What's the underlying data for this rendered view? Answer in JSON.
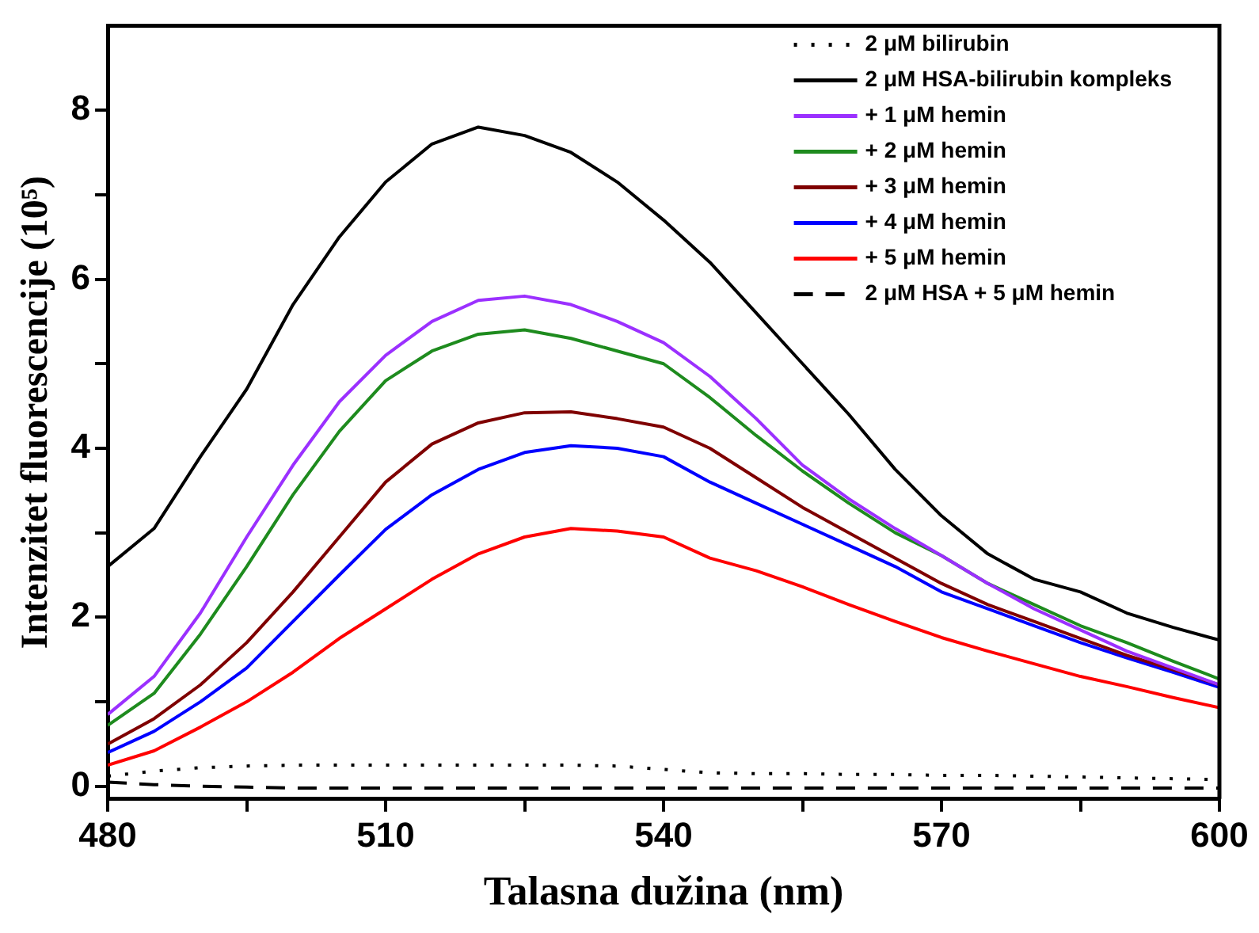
{
  "chart_data": {
    "type": "line",
    "xlabel": "Talasna dužina (nm)",
    "ylabel": "Intenzitet fluorescencije (10⁵)",
    "xlim": [
      480,
      600
    ],
    "xticks": [
      480,
      {
        "value": 495,
        "label": null
      },
      510,
      {
        "value": 525,
        "label": null
      },
      540,
      {
        "value": 555,
        "label": null
      },
      570,
      {
        "value": 585,
        "label": null
      },
      600
    ],
    "ylim": [
      -0.15,
      9
    ],
    "yticks": [
      0,
      {
        "value": 1,
        "label": null
      },
      2,
      {
        "value": 3,
        "label": null
      },
      4,
      {
        "value": 5,
        "label": null
      },
      6,
      {
        "value": 7,
        "label": null
      },
      8
    ],
    "x": [
      480,
      485,
      490,
      495,
      500,
      505,
      510,
      515,
      520,
      525,
      530,
      535,
      540,
      545,
      550,
      555,
      560,
      565,
      570,
      575,
      580,
      585,
      590,
      595,
      600
    ],
    "legend": "top right",
    "grid": false,
    "marker": "none",
    "series": [
      {
        "name": "2 μM bilirubin",
        "color": "#000000",
        "line_style": "dotted",
        "values": [
          0.12,
          0.18,
          0.22,
          0.24,
          0.25,
          0.25,
          0.25,
          0.25,
          0.25,
          0.25,
          0.25,
          0.24,
          0.2,
          0.16,
          0.15,
          0.15,
          0.14,
          0.14,
          0.13,
          0.13,
          0.12,
          0.11,
          0.1,
          0.09,
          0.08
        ]
      },
      {
        "name": "2 μM HSA-bilirubin kompleks",
        "color": "#000000",
        "line_style": "solid",
        "values": [
          2.6,
          3.05,
          3.9,
          4.7,
          5.7,
          6.5,
          7.15,
          7.6,
          7.8,
          7.7,
          7.5,
          7.15,
          6.7,
          6.2,
          5.6,
          5.0,
          4.4,
          3.75,
          3.2,
          2.75,
          2.45,
          2.3,
          2.05,
          1.88,
          1.73
        ]
      },
      {
        "name": "+ 1 μM hemin",
        "color": "#9b30ff",
        "line_style": "solid",
        "values": [
          0.85,
          1.3,
          2.05,
          2.95,
          3.8,
          4.55,
          5.1,
          5.5,
          5.75,
          5.8,
          5.7,
          5.5,
          5.25,
          4.85,
          4.35,
          3.8,
          3.4,
          3.05,
          2.73,
          2.4,
          2.1,
          1.85,
          1.6,
          1.4,
          1.2
        ]
      },
      {
        "name": "+ 2 μM hemin",
        "color": "#1e8b1e",
        "line_style": "solid",
        "values": [
          0.72,
          1.1,
          1.8,
          2.6,
          3.45,
          4.2,
          4.8,
          5.15,
          5.35,
          5.4,
          5.3,
          5.15,
          5.0,
          4.6,
          4.15,
          3.73,
          3.35,
          3.0,
          2.73,
          2.4,
          2.15,
          1.9,
          1.7,
          1.48,
          1.27
        ]
      },
      {
        "name": "+ 3 μM hemin",
        "color": "#7f0000",
        "line_style": "solid",
        "values": [
          0.5,
          0.8,
          1.2,
          1.7,
          2.3,
          2.95,
          3.6,
          4.05,
          4.3,
          4.42,
          4.43,
          4.35,
          4.25,
          4.0,
          3.65,
          3.3,
          3.0,
          2.7,
          2.4,
          2.15,
          1.95,
          1.75,
          1.55,
          1.38,
          1.2
        ]
      },
      {
        "name": "+ 4 μM hemin",
        "color": "#0000ff",
        "line_style": "solid",
        "values": [
          0.4,
          0.65,
          1.0,
          1.4,
          1.95,
          2.5,
          3.04,
          3.45,
          3.75,
          3.95,
          4.03,
          4.0,
          3.9,
          3.6,
          3.35,
          3.1,
          2.85,
          2.6,
          2.3,
          2.1,
          1.9,
          1.7,
          1.52,
          1.35,
          1.17
        ]
      },
      {
        "name": "+ 5 μM hemin",
        "color": "#ff0000",
        "line_style": "solid",
        "values": [
          0.25,
          0.42,
          0.7,
          1.0,
          1.35,
          1.75,
          2.1,
          2.45,
          2.75,
          2.95,
          3.05,
          3.02,
          2.95,
          2.7,
          2.55,
          2.36,
          2.15,
          1.95,
          1.76,
          1.6,
          1.45,
          1.3,
          1.18,
          1.05,
          0.93
        ]
      },
      {
        "name": "2 μM HSA + 5 μM hemin",
        "color": "#000000",
        "line_style": "dashed",
        "values": [
          0.05,
          0.02,
          0.0,
          -0.01,
          -0.02,
          -0.02,
          -0.02,
          -0.02,
          -0.02,
          -0.02,
          -0.02,
          -0.02,
          -0.02,
          -0.02,
          -0.02,
          -0.02,
          -0.02,
          -0.02,
          -0.02,
          -0.02,
          -0.02,
          -0.02,
          -0.02,
          -0.02,
          -0.02
        ]
      }
    ]
  }
}
